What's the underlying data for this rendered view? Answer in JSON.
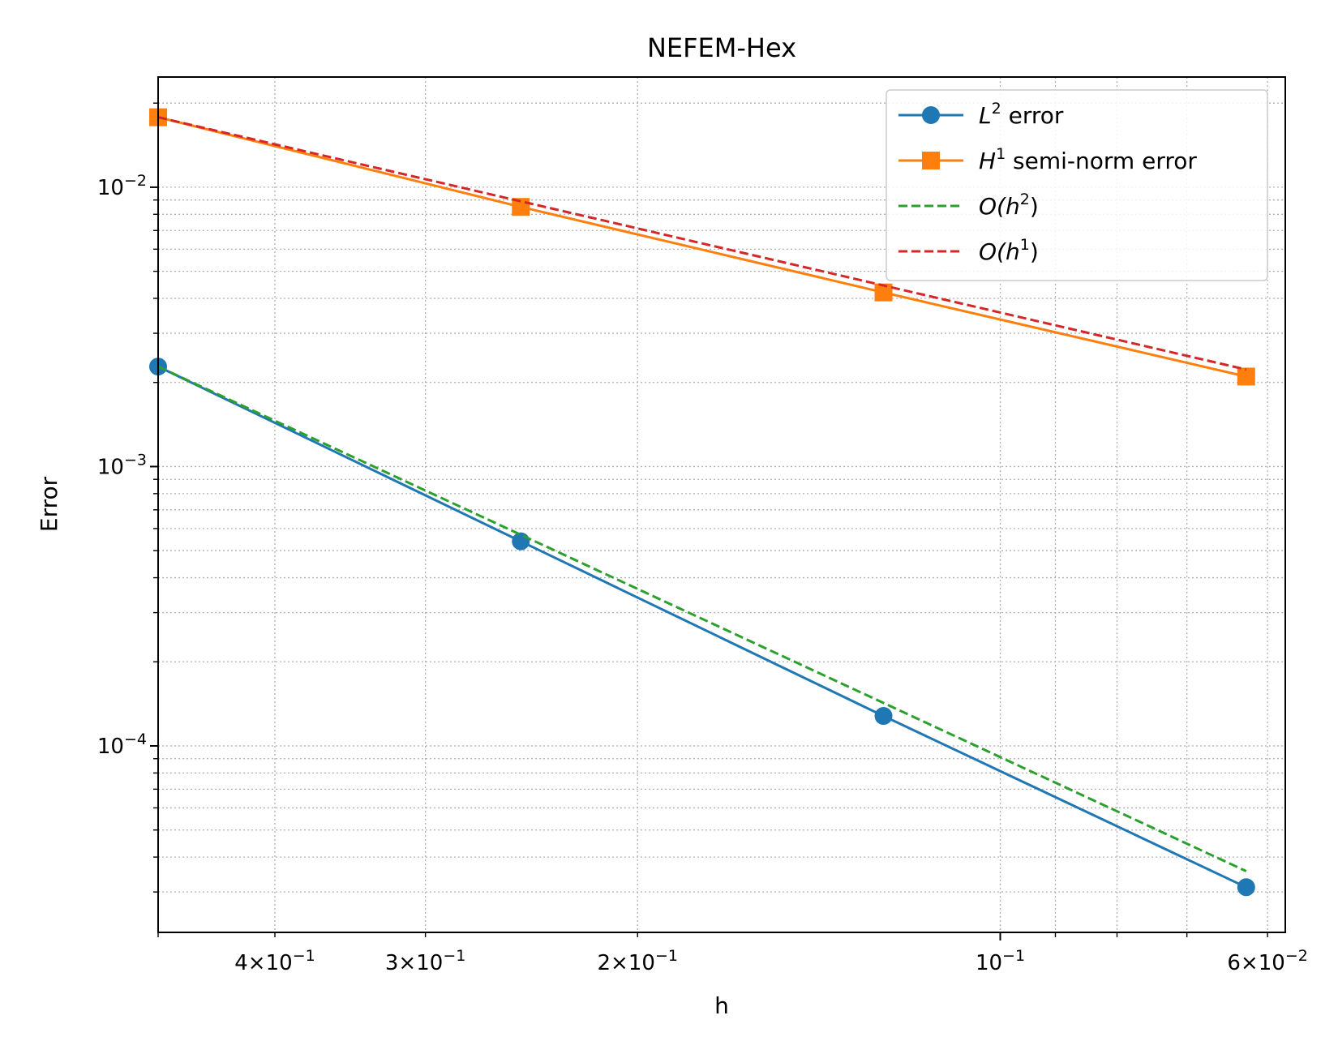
{
  "chart_data": {
    "type": "line",
    "title": "NEFEM-Hex",
    "xlabel": "h",
    "ylabel": "Error",
    "xscale": "log",
    "yscale": "log",
    "x_inverted": true,
    "xlim": [
      0.5,
      0.058
    ],
    "ylim": [
      2.15e-05,
      0.0248
    ],
    "grid": true,
    "legend_position": "top-right",
    "x": [
      0.5,
      0.25,
      0.125,
      0.0625
    ],
    "series": [
      {
        "name": "L2 error",
        "label_main": "L",
        "label_sup": "2",
        "label_rest": " error",
        "style": "solid",
        "marker": "circle",
        "color": "#1f77b4",
        "values": [
          0.00228,
          0.00054,
          0.000128,
          3.12e-05
        ]
      },
      {
        "name": "H1 semi-norm error",
        "label_main": "H",
        "label_sup": "1",
        "label_rest": " semi-norm error",
        "style": "solid",
        "marker": "square",
        "color": "#ff7f0e",
        "values": [
          0.0178,
          0.0085,
          0.0042,
          0.0021
        ]
      },
      {
        "name": "O(h^2)",
        "label_main": "O(h",
        "label_sup": "2",
        "label_rest": ")",
        "style": "dashed",
        "marker": "none",
        "color": "#2ca02c",
        "values": [
          0.00228,
          0.00057,
          0.0001425,
          3.56e-05
        ]
      },
      {
        "name": "O(h^1)",
        "label_main": "O(h",
        "label_sup": "1",
        "label_rest": ")",
        "style": "dashed",
        "marker": "none",
        "color": "#d62728",
        "values": [
          0.0178,
          0.0089,
          0.00445,
          0.002225
        ]
      }
    ],
    "x_ticks": [
      {
        "value": 0.4,
        "mant": "4",
        "exp": "−1"
      },
      {
        "value": 0.3,
        "mant": "3",
        "exp": "−1"
      },
      {
        "value": 0.2,
        "mant": "2",
        "exp": "−1"
      },
      {
        "value": 0.1,
        "mant": "",
        "exp": "−1"
      },
      {
        "value": 0.06,
        "mant": "6",
        "exp": "−2"
      }
    ],
    "y_ticks": [
      {
        "value": 0.01,
        "exp": "−2"
      },
      {
        "value": 0.001,
        "exp": "−3"
      },
      {
        "value": 0.0001,
        "exp": "−4"
      }
    ]
  }
}
